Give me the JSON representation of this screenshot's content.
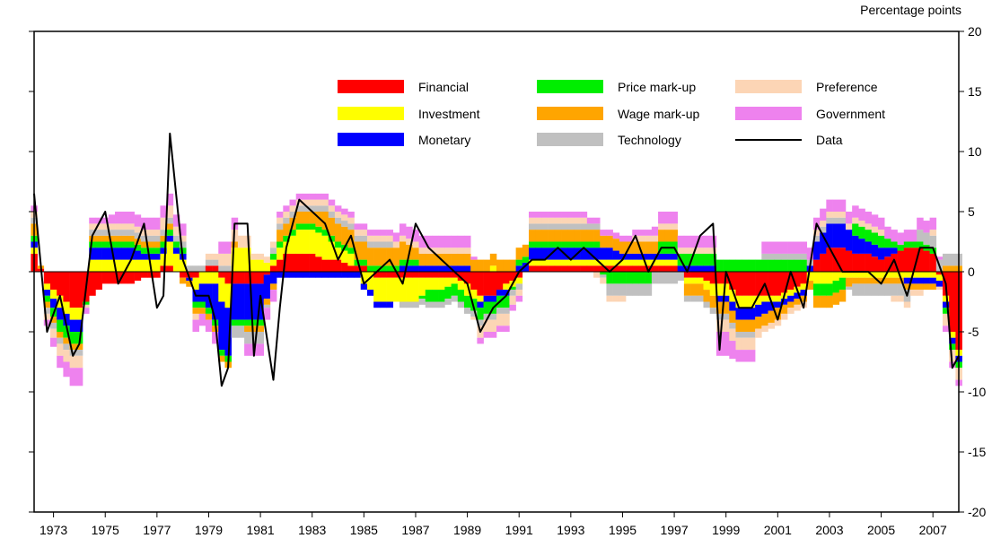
{
  "chart_data": {
    "type": "bar",
    "stacked": true,
    "unit_label": "Percentage points",
    "x_tick_labels": [
      "1973",
      "1975",
      "1977",
      "1979",
      "1981",
      "1983",
      "1985",
      "1987",
      "1989",
      "1991",
      "1993",
      "1995",
      "1997",
      "1999",
      "2001",
      "2003",
      "2005",
      "2007"
    ],
    "x_range": [
      1972.75,
      2008.5
    ],
    "ylim": [
      -20,
      20
    ],
    "y_ticks": [
      -20,
      -15,
      -10,
      -5,
      0,
      5,
      10,
      15,
      20
    ],
    "y_axis_side": "right",
    "grid": false,
    "legend_position": "top-center",
    "colors": {
      "Financial": "#ff0000",
      "Investment": "#ffff00",
      "Monetary": "#0000ff",
      "Price mark-up": "#00ee00",
      "Wage mark-up": "#ffa500",
      "Technology": "#c0c0c0",
      "Preference": "#fcd5b5",
      "Government": "#ee82ee",
      "Data": "#000000"
    },
    "legend": [
      {
        "name": "Financial",
        "kind": "bar"
      },
      {
        "name": "Investment",
        "kind": "bar"
      },
      {
        "name": "Monetary",
        "kind": "bar"
      },
      {
        "name": "Price mark-up",
        "kind": "bar"
      },
      {
        "name": "Wage mark-up",
        "kind": "bar"
      },
      {
        "name": "Technology",
        "kind": "bar"
      },
      {
        "name": "Preference",
        "kind": "bar"
      },
      {
        "name": "Government",
        "kind": "bar"
      },
      {
        "name": "Data",
        "kind": "line"
      }
    ],
    "anchors": {
      "x": [
        1972.75,
        1973.25,
        1973.75,
        1974.25,
        1974.5,
        1975.0,
        1975.5,
        1976.0,
        1976.5,
        1977.0,
        1977.5,
        1977.75,
        1978.0,
        1978.5,
        1979.0,
        1979.5,
        1979.75,
        1980.0,
        1980.25,
        1980.5,
        1981.0,
        1981.25,
        1981.5,
        1982.0,
        1982.25,
        1982.5,
        1983.0,
        1983.5,
        1984.0,
        1984.5,
        1985.0,
        1985.5,
        1986.0,
        1986.5,
        1987.0,
        1987.5,
        1988.0,
        1988.5,
        1989.0,
        1989.5,
        1990.0,
        1990.5,
        1991.0,
        1991.5,
        1992.0,
        1992.5,
        1993.0,
        1993.5,
        1994.0,
        1994.5,
        1995.0,
        1995.5,
        1996.0,
        1996.5,
        1997.0,
        1997.5,
        1998.0,
        1998.5,
        1999.0,
        1999.25,
        1999.5,
        2000.0,
        2000.5,
        2001.0,
        2001.5,
        2002.0,
        2002.5,
        2003.0,
        2003.5,
        2004.0,
        2004.5,
        2005.0,
        2005.5,
        2006.0,
        2006.5,
        2007.0,
        2007.5,
        2008.0,
        2008.25,
        2008.5
      ],
      "Financial": [
        1.5,
        -1,
        -2,
        -3,
        -3,
        -2,
        -1,
        -1,
        -1,
        -0.5,
        -0.5,
        0.5,
        0.5,
        -0.5,
        -0.5,
        0.5,
        0.5,
        -0.5,
        -1,
        -1,
        -1,
        -1,
        -1,
        0.5,
        1,
        1.5,
        1.5,
        1.5,
        1,
        1,
        0.5,
        0.5,
        -0.5,
        -0.5,
        -0.5,
        -0.5,
        -0.5,
        -0.5,
        -0.5,
        -1,
        -2,
        -2,
        -1,
        -0.5,
        0.5,
        0.5,
        0.5,
        0.5,
        0.5,
        0.5,
        0.5,
        0.5,
        0.5,
        0.5,
        0.5,
        0.5,
        -0.5,
        -0.5,
        -1,
        -1,
        -1,
        -2,
        -2,
        -2,
        -2,
        -1.5,
        -1,
        1,
        2,
        2,
        1.5,
        1.5,
        1,
        1.5,
        2,
        2,
        1.5,
        -2,
        -5,
        -6.5
      ],
      "Investment": [
        0.5,
        -0.5,
        -1,
        -1,
        -1,
        1,
        1,
        1,
        1,
        1,
        1,
        1,
        2,
        1,
        -1,
        -1,
        -1,
        -2,
        -2,
        2,
        2,
        1,
        1,
        0.5,
        1,
        1,
        2,
        2,
        2,
        1,
        1,
        -1,
        -2,
        -2,
        -2,
        -2,
        -1,
        -1,
        -0.5,
        -1,
        -0.5,
        0.5,
        -0.5,
        -0.5,
        0.5,
        0.5,
        0.5,
        0.5,
        0.5,
        0.5,
        0.5,
        0.5,
        0.5,
        0.5,
        0.5,
        0.5,
        -0.5,
        -0.5,
        -1,
        -1,
        -1,
        -1,
        -1,
        -0.5,
        -0.5,
        -0.5,
        -0.5,
        -1,
        -1,
        -0.5,
        -0.5,
        -0.5,
        -0.5,
        -0.5,
        -0.5,
        -0.5,
        -0.5,
        -0.5,
        -0.5,
        -0.5
      ],
      "Monetary": [
        0.5,
        -0.5,
        -1,
        -1,
        -1,
        1,
        1,
        1,
        1,
        0.5,
        0.5,
        0.5,
        0.5,
        0.5,
        -1,
        -2,
        -3,
        -4,
        -4,
        -3,
        -3,
        -3,
        -3,
        -1,
        -0.5,
        -0.5,
        -0.5,
        -0.5,
        -0.5,
        -0.5,
        -0.5,
        -0.5,
        -0.5,
        -0.5,
        0.5,
        0.5,
        0.5,
        0.5,
        0.5,
        0.5,
        -0.5,
        -0.5,
        -0.5,
        0.5,
        1,
        1,
        1,
        1,
        1,
        1,
        1,
        0.5,
        0.5,
        0.5,
        0.5,
        0.5,
        0.5,
        0.5,
        0.5,
        -0.5,
        -0.5,
        -1,
        -1,
        -1,
        -0.5,
        -0.5,
        -0.5,
        1.5,
        2,
        2,
        1.5,
        1,
        1,
        0.5,
        -0.5,
        -0.5,
        -0.5,
        -0.5,
        -0.5,
        -0.5
      ],
      "Price mark-up": [
        0.5,
        -0.5,
        -1,
        -1,
        -1,
        0.5,
        0.5,
        0.5,
        0.5,
        0.5,
        0.5,
        0.5,
        0.5,
        0.5,
        -0.5,
        -0.5,
        -0.5,
        -0.5,
        -0.5,
        -0.5,
        -0.5,
        -0.5,
        -0.5,
        0.5,
        0.5,
        0.5,
        0.5,
        0.5,
        0.5,
        0.5,
        0.5,
        0.5,
        0.5,
        0.5,
        0.5,
        0.5,
        -1,
        -1,
        -1,
        -1,
        -1,
        -1,
        -1,
        0.5,
        0.5,
        0.5,
        0.5,
        0.5,
        0.5,
        0.5,
        -1,
        -1,
        -1,
        -1,
        1,
        1,
        1,
        1,
        1,
        1,
        1,
        1,
        1,
        1,
        1,
        1,
        1,
        -1,
        -1,
        -1,
        1,
        1,
        1,
        0.5,
        0.5,
        0.5,
        0.5,
        -0.5,
        -0.5,
        -0.5
      ],
      "Wage mark-up": [
        1,
        -0.5,
        -0.5,
        -0.5,
        -0.5,
        0.5,
        0.5,
        0.5,
        0.5,
        0.5,
        0.5,
        0.5,
        0.5,
        -0.5,
        -0.5,
        -0.5,
        -0.5,
        -0.5,
        -0.5,
        0.5,
        -0.5,
        -0.5,
        -0.5,
        -0.5,
        1,
        1,
        1,
        1,
        1.5,
        1.5,
        1.5,
        1.5,
        1.5,
        1.5,
        1.5,
        1,
        1,
        1,
        1,
        1,
        1,
        1,
        1,
        1,
        1,
        1,
        1,
        1,
        1,
        1,
        1,
        1,
        1,
        1,
        1,
        1,
        -1,
        -1,
        -1,
        -1,
        -1,
        -1,
        -1,
        -1,
        -1,
        -0.5,
        -0.5,
        -1,
        -1,
        -1,
        -0.5,
        -0.5,
        -0.5,
        -0.5,
        -0.5,
        -0.5,
        -0.5,
        0.5,
        0.5,
        0.5
      ],
      "Technology": [
        0.5,
        -0.5,
        -0.5,
        -0.5,
        -0.5,
        0.5,
        0.5,
        0.5,
        0.5,
        0.5,
        0.5,
        0.5,
        0.5,
        0.5,
        0.5,
        0.5,
        0.5,
        0.5,
        0.5,
        -1,
        -1,
        -1,
        -1,
        0.5,
        0.5,
        0.5,
        0.5,
        0.5,
        0.5,
        0.5,
        0.5,
        0.5,
        0.5,
        0.5,
        -0.5,
        -0.5,
        -0.5,
        -0.5,
        -0.5,
        -0.5,
        -0.5,
        -0.5,
        -0.5,
        -0.5,
        0.5,
        0.5,
        0.5,
        0.5,
        0.5,
        0.5,
        -1,
        -1,
        -1,
        -1,
        -1,
        -1,
        -0.5,
        -0.5,
        -0.5,
        -0.5,
        -0.5,
        -0.5,
        -0.5,
        0.5,
        0.5,
        0.5,
        0.5,
        0.5,
        0.5,
        0.5,
        -1,
        -1,
        -1,
        -1,
        -1,
        1,
        1,
        1,
        1,
        1
      ],
      "Preference": [
        0.5,
        -0.5,
        -1,
        -1,
        -1,
        0.5,
        0.5,
        0.5,
        0.5,
        0.5,
        0.5,
        1,
        1,
        0.5,
        -0.5,
        0.5,
        0.5,
        1,
        1,
        1,
        1,
        0.5,
        0.5,
        0.5,
        0.5,
        0.5,
        0.5,
        0.5,
        0.5,
        0.5,
        0.5,
        0.5,
        0.5,
        0.5,
        0.5,
        0.5,
        0.5,
        0.5,
        0.5,
        0.5,
        -1,
        -1,
        -1,
        -0.5,
        0.5,
        0.5,
        0.5,
        0.5,
        0.5,
        -0.5,
        -0.5,
        -0.5,
        0.5,
        0.5,
        0.5,
        0.5,
        0.5,
        0.5,
        0.5,
        -1,
        -1,
        -1,
        -1,
        -0.5,
        -0.5,
        -0.5,
        -0.5,
        0.5,
        0.5,
        0.5,
        0.5,
        0.5,
        0.5,
        -0.5,
        -0.5,
        -0.5,
        0.5,
        -1,
        -1,
        -1
      ],
      "Government": [
        0.5,
        -0.5,
        -1,
        -1.5,
        -1.5,
        0.5,
        0.5,
        1,
        1,
        1,
        1,
        1,
        1,
        1,
        -1,
        -1,
        -1,
        1,
        1,
        1,
        -1,
        -1,
        -1,
        -1,
        0.5,
        0.5,
        0.5,
        0.5,
        0.5,
        0.5,
        0.5,
        0.5,
        0.5,
        0.5,
        1,
        1,
        1,
        1,
        1,
        1,
        -0.5,
        -0.5,
        -0.5,
        -0.5,
        0.5,
        0.5,
        0.5,
        0.5,
        0.5,
        0.5,
        0.5,
        0.5,
        0.5,
        0.5,
        1,
        1,
        1,
        1,
        1,
        -2,
        -2,
        -1,
        -1,
        1,
        1,
        1,
        1,
        1,
        1,
        1,
        1,
        1,
        1,
        1,
        1,
        1,
        1,
        -0.5,
        -0.5,
        -0.5
      ],
      "Data": [
        6.5,
        -5,
        -2,
        -7,
        -6,
        3,
        5,
        -1,
        1,
        4,
        -3,
        -2,
        11.5,
        1,
        -2,
        -2,
        -4,
        -9.5,
        -8,
        4,
        4,
        -7,
        -2,
        -9,
        -3,
        2,
        6,
        5,
        4,
        1,
        3,
        -1,
        0,
        1,
        -1,
        4,
        2,
        1,
        0,
        -1,
        -5,
        -3,
        -2,
        0,
        1,
        1,
        2,
        1,
        2,
        1,
        0,
        1,
        3,
        0,
        2,
        2,
        0,
        3,
        4,
        -6.5,
        0,
        -3,
        -3,
        -1,
        -4,
        0,
        -3,
        4,
        2,
        0,
        0,
        0,
        -1,
        1,
        -2,
        2,
        2,
        -1,
        -8,
        -7
      ]
    }
  }
}
